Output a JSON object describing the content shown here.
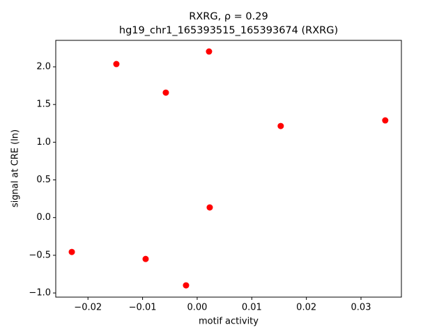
{
  "chart_data": {
    "type": "scatter",
    "title": "RXRG, ρ = 0.29",
    "subtitle": "hg19_chr1_165393515_165393674 (RXRG)",
    "x_label": "motif activity",
    "y_label": "signal at CRE (ln)",
    "color": "#ff0000",
    "x": [
      -0.02296,
      -0.0148,
      -0.00944,
      -0.00574,
      -0.00204,
      0.00217,
      0.0023,
      0.0153,
      0.03444
    ],
    "values": [
      -0.456,
      2.037,
      -0.549,
      1.658,
      -0.899,
      2.203,
      0.135,
      1.215,
      1.289
    ],
    "xlim": [
      -0.0259,
      0.0374
    ],
    "ylim": [
      -1.055,
      2.351
    ],
    "xticks": [
      {
        "value": -0.02,
        "label": "−0.02"
      },
      {
        "value": -0.01,
        "label": "−0.01"
      },
      {
        "value": 0,
        "label": "0.00"
      },
      0.01,
      0.02,
      0.03
    ],
    "yticks": [
      {
        "value": -1,
        "label": "−1.0"
      },
      {
        "value": -0.5,
        "label": "−0.5"
      },
      {
        "value": 0,
        "label": "0.0"
      },
      0.5,
      {
        "value": 1,
        "label": "1.0"
      },
      1.5,
      {
        "value": 2,
        "label": "2.0"
      }
    ],
    "grid": false
  }
}
